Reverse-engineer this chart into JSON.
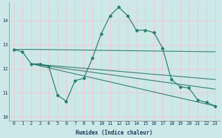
{
  "xlabel": "Humidex (Indice chaleur)",
  "ylabel": "",
  "bg_color": "#cce8e8",
  "grid_color": "#f0c8c8",
  "line_color": "#2e7d6e",
  "xlim": [
    -0.5,
    23.5
  ],
  "ylim": [
    9.85,
    14.75
  ],
  "xticks": [
    0,
    1,
    2,
    3,
    4,
    5,
    6,
    7,
    8,
    9,
    10,
    11,
    12,
    13,
    14,
    15,
    16,
    17,
    18,
    19,
    20,
    21,
    22,
    23
  ],
  "yticks": [
    10,
    11,
    12,
    13,
    14
  ],
  "line1_x": [
    0,
    1,
    2,
    3,
    4,
    5,
    6,
    7,
    8,
    9,
    10,
    11,
    12,
    13,
    14,
    15,
    16,
    17,
    18,
    19,
    20,
    21,
    22,
    23
  ],
  "line1_y": [
    12.8,
    12.7,
    12.2,
    12.2,
    12.1,
    10.9,
    10.65,
    11.5,
    11.6,
    12.45,
    13.45,
    14.2,
    14.55,
    14.2,
    13.6,
    13.6,
    13.5,
    12.85,
    11.55,
    11.25,
    11.2,
    10.7,
    10.6,
    10.45
  ],
  "line2_x": [
    0,
    2,
    23
  ],
  "line2_y": [
    12.8,
    12.8,
    12.7
  ],
  "line3_x": [
    2,
    23
  ],
  "line3_y": [
    12.2,
    11.55
  ],
  "line4_x": [
    2,
    23
  ],
  "line4_y": [
    12.2,
    11.15
  ],
  "line5_x": [
    2,
    23
  ],
  "line5_y": [
    12.2,
    10.45
  ]
}
